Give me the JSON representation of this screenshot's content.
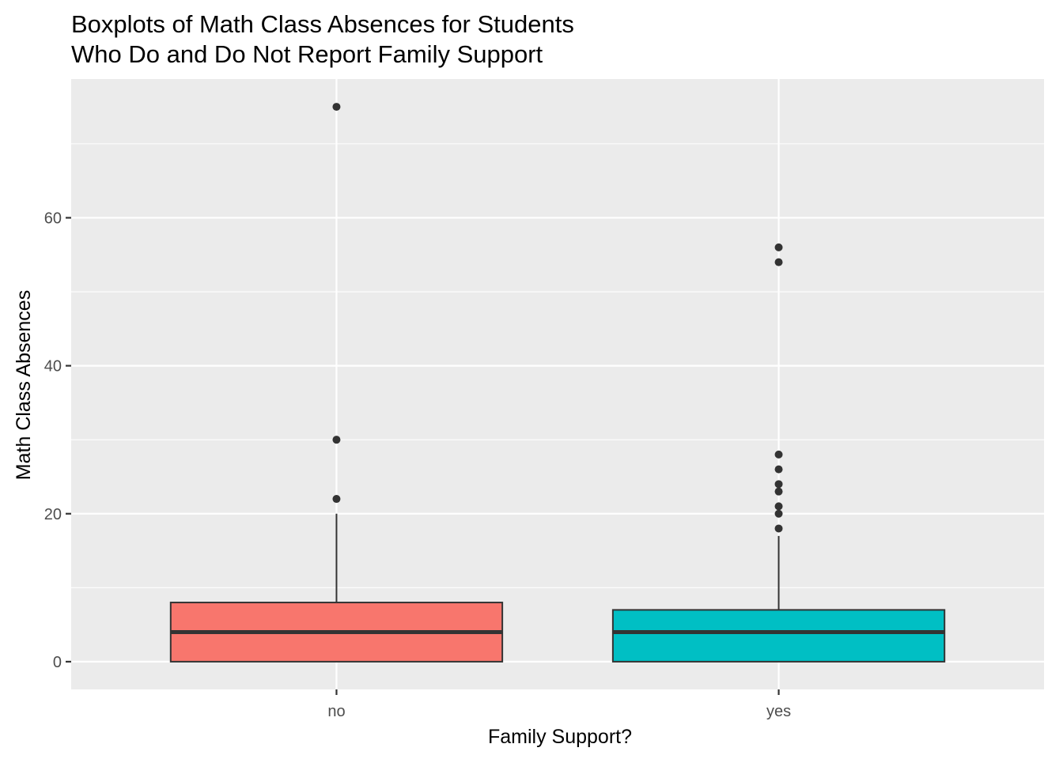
{
  "chart_data": {
    "type": "boxplot",
    "title_lines": [
      "Boxplots of Math Class Absences for Students",
      "Who Do and Do Not Report Family Support"
    ],
    "xlabel": "Family Support?",
    "ylabel": "Math Class Absences",
    "categories": [
      "no",
      "yes"
    ],
    "yticks": [
      0,
      20,
      40,
      60
    ],
    "ylim": [
      -3.75,
      78.75
    ],
    "grid": true,
    "legend": "none",
    "boxes": [
      {
        "category": "no",
        "fill": "#F8766D",
        "q1": 0,
        "median": 4,
        "q3": 8,
        "whisker_low": 0,
        "whisker_high": 20,
        "outliers": [
          22,
          30,
          75
        ]
      },
      {
        "category": "yes",
        "fill": "#00BFC4",
        "q1": 0,
        "median": 4,
        "q3": 7,
        "whisker_low": 0,
        "whisker_high": 17,
        "outliers": [
          18,
          20,
          21,
          23,
          24,
          26,
          28,
          54,
          56
        ]
      }
    ],
    "colors": {
      "panel": "#EBEBEB",
      "grid": "#FFFFFF",
      "outline": "#333333",
      "ticks": "#333333"
    }
  }
}
